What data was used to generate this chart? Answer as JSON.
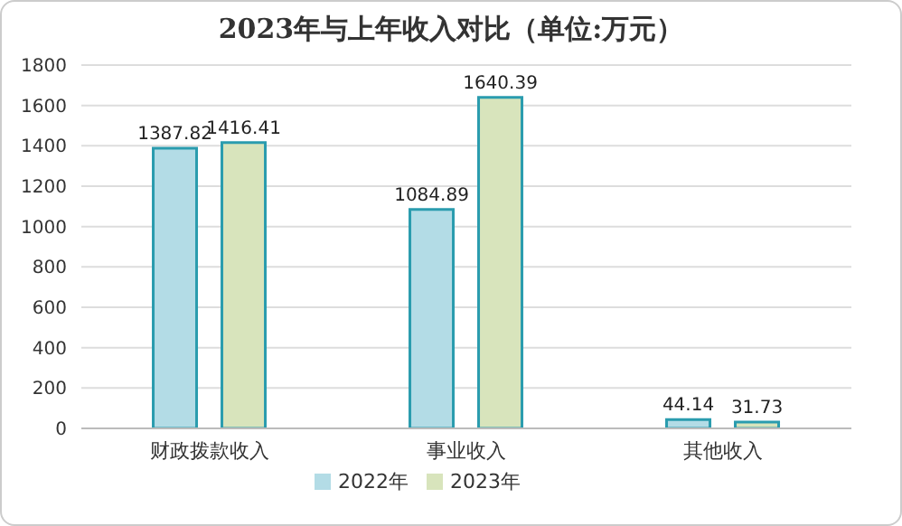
{
  "chart_data": {
    "type": "bar",
    "title": "2023年与上年收入对比（单位:万元）",
    "categories": [
      "财政拨款收入",
      "事业收入",
      "其他收入"
    ],
    "series": [
      {
        "name": "2022年",
        "color": "#b3dce6",
        "values": [
          1387.82,
          1084.89,
          44.14
        ]
      },
      {
        "name": "2023年",
        "color": "#d8e4bc",
        "values": [
          1416.41,
          1640.39,
          31.73
        ]
      }
    ],
    "ylim": [
      0,
      1800
    ],
    "yticks": [
      0,
      200,
      400,
      600,
      800,
      1000,
      1200,
      1400,
      1600,
      1800
    ],
    "grid": "y",
    "legend": "bottom",
    "data_labels": true
  }
}
